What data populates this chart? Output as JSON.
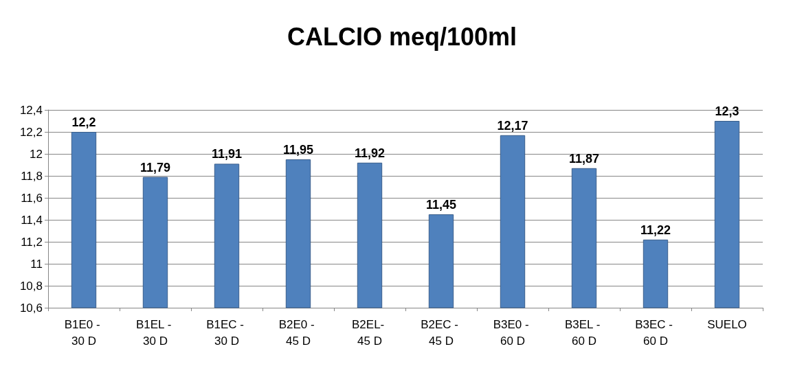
{
  "chart_data": {
    "type": "bar",
    "title": "CALCIO meq/100ml",
    "categories": [
      "B1E0 - 30 D",
      "B1EL - 30 D",
      "B1EC - 30 D",
      "B2E0 - 45 D",
      "B2EL- 45 D",
      "B2EC - 45 D",
      "B3E0 - 60 D",
      "B3EL - 60 D",
      "B3EC - 60 D",
      "SUELO"
    ],
    "values": [
      12.2,
      11.79,
      11.91,
      11.95,
      11.92,
      11.45,
      12.17,
      11.87,
      11.22,
      12.3
    ],
    "value_labels": [
      "12,2",
      "11,79",
      "11,91",
      "11,95",
      "11,92",
      "11,45",
      "12,17",
      "11,87",
      "11,22",
      "12,3"
    ],
    "color": "#4f81bd",
    "ylim": [
      10.6,
      12.4
    ],
    "yticks": [
      {
        "value": 10.6,
        "label": "10,6"
      },
      {
        "value": 10.8,
        "label": "10,8"
      },
      {
        "value": 11,
        "label": "11"
      },
      {
        "value": 11.2,
        "label": "11,2"
      },
      {
        "value": 11.4,
        "label": "11,4"
      },
      {
        "value": 11.6,
        "label": "11,6"
      },
      {
        "value": 11.8,
        "label": "11,8"
      },
      {
        "value": 12,
        "label": "12"
      },
      {
        "value": 12.2,
        "label": "12,2"
      },
      {
        "value": 12.4,
        "label": "12,4"
      }
    ],
    "grid": "y"
  }
}
